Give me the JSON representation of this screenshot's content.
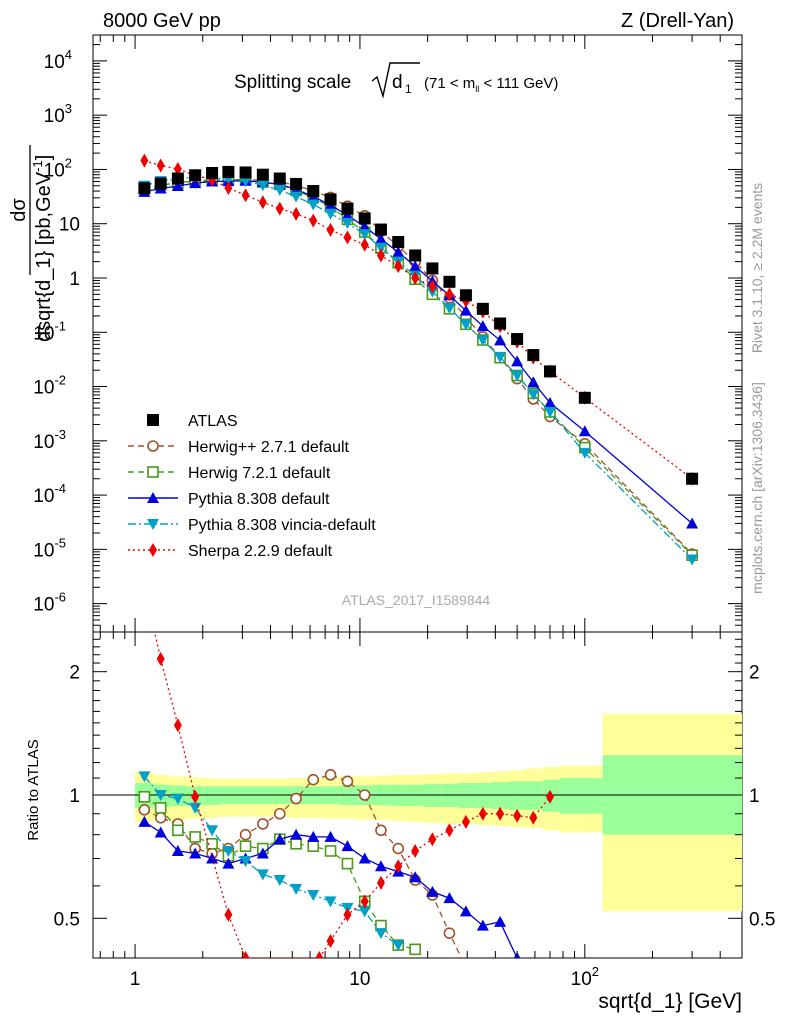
{
  "header": {
    "left": "8000 GeV pp",
    "right": "Z (Drell-Yan)"
  },
  "side_labels": {
    "rivet": "Rivet 3.1.10, ≥ 2.2M events",
    "mcplots": "mcplots.cern.ch [arXiv:1306.3436]"
  },
  "chart_data": [
    {
      "type": "scatter",
      "title_prefix": "Splitting scale",
      "title_sqrt_symbol": "d",
      "title_sqrt_subscript": "1",
      "title_range_pre": "(71 < m",
      "title_range_sub": "ll",
      "title_range_post": " < 111 GeV)",
      "ylabel_num": "dσ",
      "ylabel_den": "dsqrt{d_1} [pb,GeV",
      "ylabel_den_sup": "-1",
      "ylabel_den_close": "]",
      "xscale": "log",
      "yscale": "log",
      "xlim": [
        0.65,
        500
      ],
      "ylim": [
        3e-07,
        30000.0
      ],
      "y_tick_labels": [
        "10",
        "10",
        "10",
        "10",
        "10",
        "10",
        "1",
        "10",
        "10",
        "10",
        "10",
        "10",
        "10"
      ],
      "y_tick_exps": [
        "4",
        "3",
        "2",
        "",
        "-1",
        "-2",
        "-3",
        "-4",
        "-5",
        "-6"
      ],
      "watermark": "ATLAS_2017_I1589844",
      "legend_position": "bottom-left",
      "legend": [
        {
          "label": "ATLAS",
          "color": "#000000",
          "marker": "square-filled",
          "line": "none"
        },
        {
          "label": "Herwig++ 2.7.1 default",
          "color": "#a0522d",
          "marker": "circle-open",
          "line": "dashed"
        },
        {
          "label": "Herwig 7.2.1 default",
          "color": "#4a9a1a",
          "marker": "square-open",
          "line": "dashed"
        },
        {
          "label": "Pythia 8.308 default",
          "color": "#0000dd",
          "marker": "triangle-up",
          "line": "solid"
        },
        {
          "label": "Pythia 8.308 vincia-default",
          "color": "#00a0c8",
          "marker": "triangle-down",
          "line": "dashdot"
        },
        {
          "label": "Sherpa 2.2.9 default",
          "color": "#ee0000",
          "marker": "diamond",
          "line": "dotted"
        }
      ],
      "x": [
        1.1,
        1.3,
        1.55,
        1.85,
        2.2,
        2.6,
        3.1,
        3.7,
        4.4,
        5.2,
        6.2,
        7.4,
        8.8,
        10.5,
        12.4,
        14.8,
        17.6,
        21,
        25,
        29.6,
        35.2,
        42,
        50,
        59,
        70,
        100,
        300
      ],
      "series": [
        {
          "name": "ATLAS",
          "values": [
            45,
            55,
            68,
            78,
            86,
            90,
            88,
            80,
            68,
            54,
            40,
            28,
            19,
            12.5,
            7.8,
            4.6,
            2.6,
            1.5,
            0.85,
            0.48,
            0.27,
            0.145,
            0.075,
            0.038,
            0.019,
            0.0062,
            0.0002
          ]
        },
        {
          "name": "Herwig++ 2.7.1 default",
          "values": [
            41,
            50,
            59,
            59,
            62,
            62,
            64,
            64,
            59,
            51,
            40,
            30.5,
            21,
            14,
            7.3,
            3.8,
            2.0,
            0.9,
            0.43,
            0.19,
            0.082,
            0.034,
            0.014,
            0.0059,
            0.0028,
            0.00088,
            8.2e-06
          ]
        },
        {
          "name": "Herwig 7.2.1 default",
          "values": [
            45,
            52,
            56,
            62,
            65,
            64,
            66,
            59,
            53,
            41,
            30,
            20.5,
            12,
            7,
            3.6,
            1.9,
            0.95,
            0.5,
            0.27,
            0.14,
            0.072,
            0.034,
            0.016,
            0.0075,
            0.0034,
            0.00075,
            7.8e-06
          ]
        },
        {
          "name": "Pythia 8.308 default",
          "values": [
            38.7,
            44.6,
            49.6,
            56,
            60,
            61,
            62,
            58,
            53,
            43,
            31.6,
            22.1,
            14.3,
            8.8,
            5.2,
            3.0,
            1.64,
            0.87,
            0.48,
            0.25,
            0.13,
            0.071,
            0.029,
            0.012,
            0.005,
            0.0015,
            3e-05
          ]
        },
        {
          "name": "Pythia 8.308 vincia-default",
          "values": [
            50,
            61,
            67,
            73,
            71,
            66,
            61,
            51,
            42,
            31.5,
            22.6,
            15.3,
            10.3,
            6.4,
            3.6,
            2.0,
            1.1,
            0.56,
            0.28,
            0.14,
            0.072,
            0.035,
            0.016,
            0.0072,
            0.0034,
            0.0006,
            6.5e-06
          ]
        },
        {
          "name": "Sherpa 2.2.9 default",
          "values": [
            145,
            118,
            102,
            77,
            65,
            45.5,
            33.5,
            24.8,
            19.0,
            15.2,
            11.4,
            7.7,
            5.6,
            4.1,
            2.6,
            1.65,
            1.0,
            0.7,
            0.5,
            0.38,
            0.24,
            0.13,
            0.067,
            0.034,
            0.019,
            0.0062,
            0.0002
          ]
        }
      ]
    },
    {
      "type": "scatter",
      "title": "",
      "xlabel": "sqrt{d_1} [GeV]",
      "ylabel": "Ratio to ATLAS",
      "xscale": "log",
      "yscale": "log",
      "xlim": [
        0.65,
        500
      ],
      "ylim": [
        0.4,
        2.5
      ],
      "x_tick_labels": [
        "1",
        "10",
        "10"
      ],
      "x_tick_sup": "2",
      "y_tick_labels": [
        "0.5",
        "1",
        "2"
      ],
      "reference_line": 1,
      "bands": {
        "x_edges": [
          1,
          1.2,
          1.42,
          1.7,
          2.0,
          2.4,
          2.85,
          3.4,
          4.05,
          4.8,
          5.7,
          6.8,
          8.1,
          9.6,
          11.4,
          13.6,
          16.2,
          19.3,
          23,
          27.3,
          32.5,
          38.5,
          45.8,
          54.5,
          65,
          77,
          120,
          500
        ],
        "yellow_lower": [
          0.86,
          0.87,
          0.87,
          0.875,
          0.88,
          0.885,
          0.885,
          0.885,
          0.885,
          0.88,
          0.88,
          0.875,
          0.875,
          0.87,
          0.87,
          0.865,
          0.86,
          0.855,
          0.85,
          0.85,
          0.845,
          0.84,
          0.835,
          0.83,
          0.82,
          0.81,
          0.52
        ],
        "yellow_upper": [
          1.14,
          1.12,
          1.11,
          1.105,
          1.1,
          1.095,
          1.095,
          1.095,
          1.095,
          1.1,
          1.1,
          1.105,
          1.11,
          1.11,
          1.115,
          1.12,
          1.12,
          1.125,
          1.13,
          1.13,
          1.135,
          1.14,
          1.15,
          1.16,
          1.17,
          1.18,
          1.58
        ],
        "green_lower": [
          0.93,
          0.935,
          0.94,
          0.945,
          0.945,
          0.95,
          0.95,
          0.95,
          0.95,
          0.95,
          0.95,
          0.95,
          0.945,
          0.945,
          0.945,
          0.94,
          0.94,
          0.935,
          0.935,
          0.93,
          0.93,
          0.925,
          0.92,
          0.92,
          0.91,
          0.9,
          0.8
        ],
        "green_upper": [
          1.07,
          1.06,
          1.055,
          1.05,
          1.05,
          1.05,
          1.05,
          1.05,
          1.05,
          1.05,
          1.05,
          1.05,
          1.055,
          1.055,
          1.06,
          1.06,
          1.06,
          1.065,
          1.065,
          1.07,
          1.07,
          1.075,
          1.08,
          1.08,
          1.09,
          1.1,
          1.25
        ],
        "yellow_color": "#ffff99",
        "green_color": "#99ff99"
      },
      "series": [
        {
          "name": "Herwig++ 2.7.1 default",
          "x": [
            1.1,
            1.3,
            1.55,
            1.85,
            2.2,
            2.6,
            3.1,
            3.7,
            4.4,
            5.2,
            6.2,
            7.4,
            8.8,
            10.5,
            12.4,
            14.8,
            17.6,
            21,
            25,
            29.6
          ],
          "values": [
            0.92,
            0.88,
            0.85,
            0.74,
            0.72,
            0.74,
            0.8,
            0.85,
            0.9,
            0.98,
            1.09,
            1.12,
            1.08,
            1.0,
            0.82,
            0.74,
            0.62,
            0.57,
            0.46,
            0.38
          ]
        },
        {
          "name": "Herwig 7.2.1 default",
          "x": [
            1.1,
            1.3,
            1.55,
            1.85,
            2.2,
            2.6,
            3.1,
            3.7,
            4.4,
            5.2,
            6.2,
            7.4,
            8.8,
            10.5,
            12.4,
            14.8,
            17.6
          ],
          "values": [
            0.99,
            0.93,
            0.82,
            0.79,
            0.76,
            0.71,
            0.75,
            0.74,
            0.78,
            0.76,
            0.75,
            0.73,
            0.68,
            0.55,
            0.48,
            0.43,
            0.42
          ]
        },
        {
          "name": "Pythia 8.308 default",
          "x": [
            1.1,
            1.3,
            1.55,
            1.85,
            2.2,
            2.6,
            3.1,
            3.7,
            4.4,
            5.2,
            6.2,
            7.4,
            8.8,
            10.5,
            12.4,
            14.8,
            17.6,
            21,
            25,
            29.6,
            35.2,
            42,
            50
          ],
          "values": [
            0.86,
            0.81,
            0.73,
            0.72,
            0.7,
            0.68,
            0.7,
            0.72,
            0.78,
            0.8,
            0.79,
            0.79,
            0.75,
            0.7,
            0.67,
            0.65,
            0.63,
            0.58,
            0.56,
            0.52,
            0.48,
            0.49,
            0.4
          ]
        },
        {
          "name": "Pythia 8.308 vincia-default",
          "x": [
            1.1,
            1.3,
            1.55,
            1.85,
            2.2,
            2.6,
            3.1,
            3.7,
            4.4,
            5.2,
            6.2,
            7.4,
            8.8,
            10.5,
            12.4,
            14.8
          ],
          "values": [
            1.11,
            1.0,
            0.98,
            0.93,
            0.82,
            0.73,
            0.69,
            0.64,
            0.62,
            0.59,
            0.57,
            0.55,
            0.53,
            0.52,
            0.46,
            0.43
          ]
        },
        {
          "name": "Sherpa 2.2.9 default",
          "x": [
            1.2,
            1.3,
            1.55,
            1.85,
            2.6,
            3.1,
            6.6,
            7.4,
            8.8,
            10.5,
            12.4,
            14.8,
            17.6,
            21,
            25,
            29.6,
            35.2,
            42,
            50,
            59,
            70
          ],
          "values": [
            2.6,
            2.15,
            1.48,
            0.99,
            0.51,
            0.4,
            0.4,
            0.44,
            0.51,
            0.55,
            0.61,
            0.67,
            0.73,
            0.78,
            0.82,
            0.86,
            0.9,
            0.9,
            0.89,
            0.88,
            0.99
          ]
        }
      ]
    }
  ]
}
